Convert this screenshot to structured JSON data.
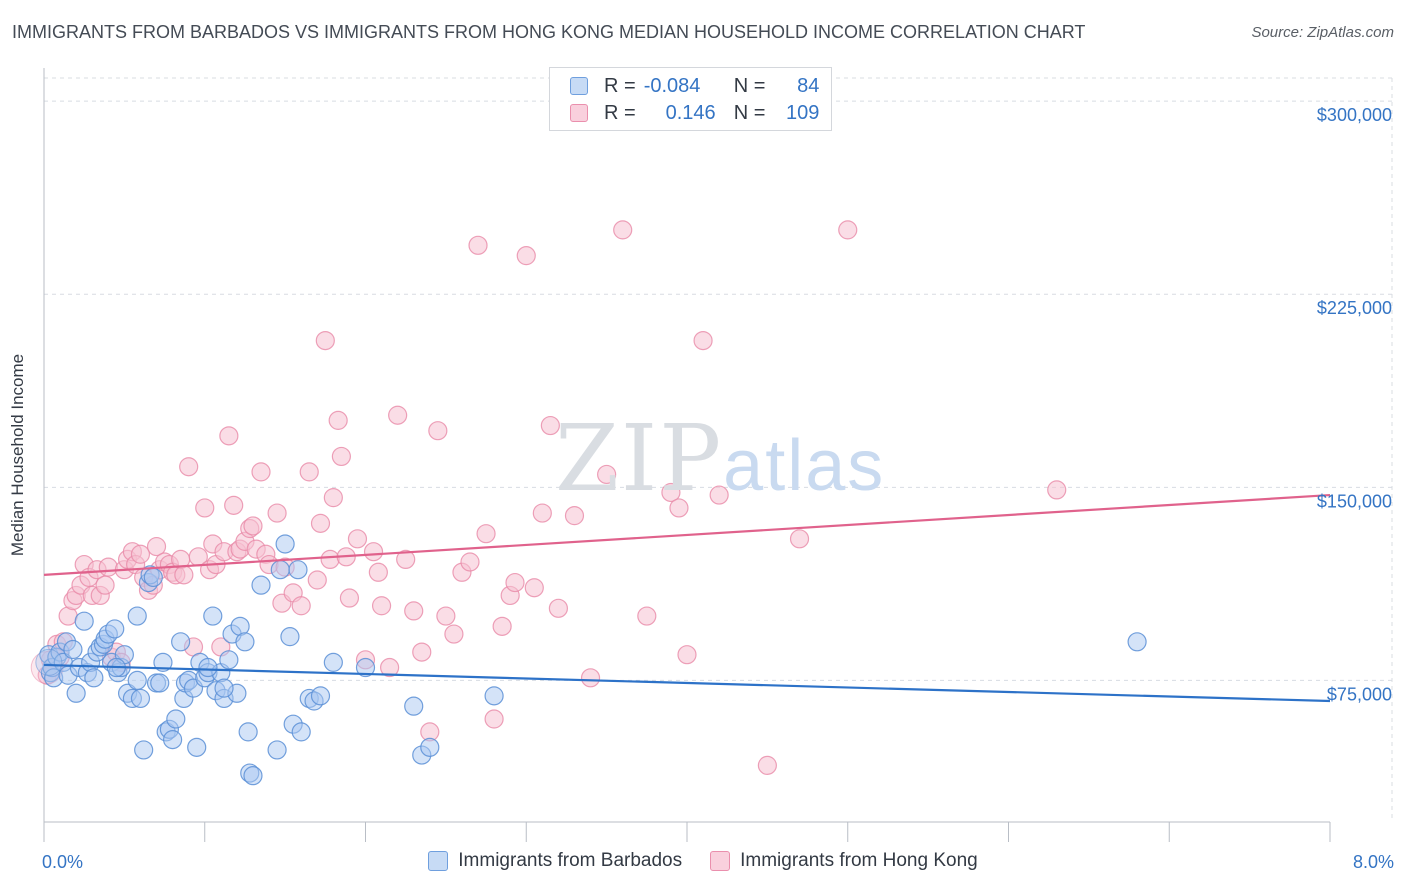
{
  "title": "IMMIGRANTS FROM BARBADOS VS IMMIGRANTS FROM HONG KONG MEDIAN HOUSEHOLD INCOME CORRELATION CHART",
  "source": "Source: ZipAtlas.com",
  "watermark": {
    "zip": "ZIP",
    "atlas": "atlas"
  },
  "legend": {
    "rows": [
      {
        "r_label": "R =",
        "r_value": "-0.084",
        "n_label": "N =",
        "n_value": "84",
        "color": "#a9c8f1"
      },
      {
        "r_label": "R =",
        "r_value": "0.146",
        "n_label": "N =",
        "n_value": "109",
        "color": "#f6b7ca"
      }
    ]
  },
  "colors": {
    "blue": "#5b8fd6",
    "blue_fill": "#a9c8f1",
    "blue_line": "#2d72c8",
    "pink": "#e88aa8",
    "pink_fill": "#f6c1d2",
    "pink_line": "#e0628c",
    "grid": "#d8dce2",
    "tick_label": "#3474c4"
  },
  "chart_data": {
    "type": "scatter",
    "title": "IMMIGRANTS FROM BARBADOS VS IMMIGRANTS FROM HONG KONG MEDIAN HOUSEHOLD INCOME CORRELATION CHART",
    "xlabel": "",
    "ylabel": "Median Household Income",
    "xlim": [
      0,
      8
    ],
    "ylim": [
      20000,
      320000
    ],
    "x_tick_labels": [
      "0.0%",
      "8.0%"
    ],
    "y_ticks": [
      75000,
      150000,
      225000,
      300000
    ],
    "y_tick_labels": [
      "$75,000",
      "$150,000",
      "$225,000",
      "$300,000"
    ],
    "grid": true,
    "legend_position": "top-center",
    "series": [
      {
        "name": "Immigrants from Barbados",
        "trend": {
          "x": [
            0,
            8
          ],
          "y": [
            81000,
            67000
          ]
        },
        "points": [
          [
            0.03,
            85000
          ],
          [
            0.04,
            78000
          ],
          [
            0.05,
            80000
          ],
          [
            0.06,
            76000
          ],
          [
            0.08,
            84000
          ],
          [
            0.1,
            86000
          ],
          [
            0.12,
            82000
          ],
          [
            0.14,
            90000
          ],
          [
            0.15,
            77000
          ],
          [
            0.18,
            87000
          ],
          [
            0.2,
            70000
          ],
          [
            0.22,
            80000
          ],
          [
            0.25,
            98000
          ],
          [
            0.27,
            78000
          ],
          [
            0.29,
            82000
          ],
          [
            0.31,
            76000
          ],
          [
            0.33,
            86000
          ],
          [
            0.35,
            88000
          ],
          [
            0.37,
            89000
          ],
          [
            0.38,
            91000
          ],
          [
            0.4,
            93000
          ],
          [
            0.42,
            82000
          ],
          [
            0.44,
            95000
          ],
          [
            0.46,
            78000
          ],
          [
            0.48,
            80000
          ],
          [
            0.5,
            85000
          ],
          [
            0.52,
            70000
          ],
          [
            0.55,
            68000
          ],
          [
            0.58,
            100000
          ],
          [
            0.6,
            68000
          ],
          [
            0.62,
            48000
          ],
          [
            0.65,
            113000
          ],
          [
            0.66,
            116000
          ],
          [
            0.68,
            115000
          ],
          [
            0.7,
            74000
          ],
          [
            0.72,
            74000
          ],
          [
            0.74,
            82000
          ],
          [
            0.76,
            55000
          ],
          [
            0.78,
            56000
          ],
          [
            0.8,
            52000
          ],
          [
            0.82,
            60000
          ],
          [
            0.85,
            90000
          ],
          [
            0.87,
            68000
          ],
          [
            0.88,
            74000
          ],
          [
            0.9,
            75000
          ],
          [
            0.93,
            72000
          ],
          [
            0.95,
            49000
          ],
          [
            0.97,
            82000
          ],
          [
            1.0,
            76000
          ],
          [
            1.02,
            78000
          ],
          [
            1.05,
            100000
          ],
          [
            1.07,
            71000
          ],
          [
            1.1,
            78000
          ],
          [
            1.12,
            68000
          ],
          [
            1.15,
            83000
          ],
          [
            1.17,
            93000
          ],
          [
            1.2,
            70000
          ],
          [
            1.22,
            96000
          ],
          [
            1.25,
            90000
          ],
          [
            1.27,
            55000
          ],
          [
            1.28,
            39000
          ],
          [
            1.3,
            38000
          ],
          [
            1.35,
            112000
          ],
          [
            1.45,
            48000
          ],
          [
            1.47,
            118000
          ],
          [
            1.5,
            128000
          ],
          [
            1.53,
            92000
          ],
          [
            1.55,
            58000
          ],
          [
            1.58,
            118000
          ],
          [
            1.6,
            55000
          ],
          [
            1.65,
            68000
          ],
          [
            1.68,
            67000
          ],
          [
            1.72,
            69000
          ],
          [
            1.8,
            82000
          ],
          [
            2.0,
            80000
          ],
          [
            2.3,
            65000
          ],
          [
            2.35,
            46000
          ],
          [
            2.4,
            49000
          ],
          [
            2.8,
            69000
          ],
          [
            6.8,
            90000
          ],
          [
            0.58,
            75000
          ],
          [
            1.02,
            80000
          ],
          [
            0.45,
            80000
          ],
          [
            1.12,
            72000
          ]
        ]
      },
      {
        "name": "Immigrants from Hong Kong",
        "trend": {
          "x": [
            0,
            8
          ],
          "y": [
            116000,
            147000
          ]
        },
        "points": [
          [
            0.02,
            77000
          ],
          [
            0.04,
            83000
          ],
          [
            0.06,
            80000
          ],
          [
            0.08,
            89000
          ],
          [
            0.1,
            84000
          ],
          [
            0.12,
            90000
          ],
          [
            0.15,
            100000
          ],
          [
            0.18,
            106000
          ],
          [
            0.2,
            108000
          ],
          [
            0.23,
            112000
          ],
          [
            0.25,
            120000
          ],
          [
            0.28,
            115000
          ],
          [
            0.3,
            108000
          ],
          [
            0.33,
            118000
          ],
          [
            0.35,
            108000
          ],
          [
            0.38,
            112000
          ],
          [
            0.4,
            119000
          ],
          [
            0.42,
            84000
          ],
          [
            0.45,
            86000
          ],
          [
            0.48,
            82000
          ],
          [
            0.5,
            118000
          ],
          [
            0.52,
            122000
          ],
          [
            0.55,
            125000
          ],
          [
            0.57,
            120000
          ],
          [
            0.6,
            124000
          ],
          [
            0.62,
            115000
          ],
          [
            0.65,
            110000
          ],
          [
            0.68,
            112000
          ],
          [
            0.7,
            127000
          ],
          [
            0.72,
            118000
          ],
          [
            0.75,
            121000
          ],
          [
            0.78,
            120000
          ],
          [
            0.8,
            117000
          ],
          [
            0.82,
            116000
          ],
          [
            0.85,
            122000
          ],
          [
            0.87,
            116000
          ],
          [
            0.9,
            158000
          ],
          [
            0.93,
            88000
          ],
          [
            0.96,
            123000
          ],
          [
            1.0,
            142000
          ],
          [
            1.03,
            118000
          ],
          [
            1.05,
            128000
          ],
          [
            1.07,
            120000
          ],
          [
            1.1,
            88000
          ],
          [
            1.12,
            125000
          ],
          [
            1.15,
            170000
          ],
          [
            1.18,
            143000
          ],
          [
            1.2,
            125000
          ],
          [
            1.22,
            126000
          ],
          [
            1.25,
            129000
          ],
          [
            1.28,
            134000
          ],
          [
            1.3,
            135000
          ],
          [
            1.32,
            126000
          ],
          [
            1.35,
            156000
          ],
          [
            1.38,
            124000
          ],
          [
            1.4,
            120000
          ],
          [
            1.45,
            140000
          ],
          [
            1.48,
            105000
          ],
          [
            1.5,
            119000
          ],
          [
            1.55,
            109000
          ],
          [
            1.6,
            104000
          ],
          [
            1.65,
            156000
          ],
          [
            1.7,
            114000
          ],
          [
            1.72,
            136000
          ],
          [
            1.75,
            207000
          ],
          [
            1.78,
            122000
          ],
          [
            1.8,
            146000
          ],
          [
            1.83,
            176000
          ],
          [
            1.85,
            162000
          ],
          [
            1.88,
            123000
          ],
          [
            1.9,
            107000
          ],
          [
            1.95,
            130000
          ],
          [
            2.0,
            83000
          ],
          [
            2.05,
            125000
          ],
          [
            2.08,
            117000
          ],
          [
            2.1,
            104000
          ],
          [
            2.15,
            80000
          ],
          [
            2.2,
            178000
          ],
          [
            2.25,
            122000
          ],
          [
            2.3,
            102000
          ],
          [
            2.35,
            86000
          ],
          [
            2.4,
            55000
          ],
          [
            2.45,
            172000
          ],
          [
            2.5,
            100000
          ],
          [
            2.55,
            93000
          ],
          [
            2.6,
            117000
          ],
          [
            2.65,
            121000
          ],
          [
            2.7,
            244000
          ],
          [
            2.75,
            132000
          ],
          [
            2.8,
            60000
          ],
          [
            2.85,
            96000
          ],
          [
            2.9,
            108000
          ],
          [
            2.93,
            113000
          ],
          [
            3.0,
            240000
          ],
          [
            3.05,
            111000
          ],
          [
            3.1,
            140000
          ],
          [
            3.15,
            174000
          ],
          [
            3.2,
            103000
          ],
          [
            3.3,
            139000
          ],
          [
            3.4,
            76000
          ],
          [
            3.5,
            155000
          ],
          [
            3.6,
            250000
          ],
          [
            3.75,
            100000
          ],
          [
            3.9,
            148000
          ],
          [
            3.95,
            142000
          ],
          [
            4.0,
            85000
          ],
          [
            4.1,
            207000
          ],
          [
            4.2,
            147000
          ],
          [
            4.5,
            42000
          ],
          [
            5.0,
            250000
          ],
          [
            4.7,
            130000
          ],
          [
            6.3,
            149000
          ]
        ]
      }
    ]
  },
  "bottom_legend": [
    {
      "label": "Immigrants from Barbados",
      "color": "#a9c8f1"
    },
    {
      "label": "Immigrants from Hong Kong",
      "color": "#f6c1d2"
    }
  ]
}
